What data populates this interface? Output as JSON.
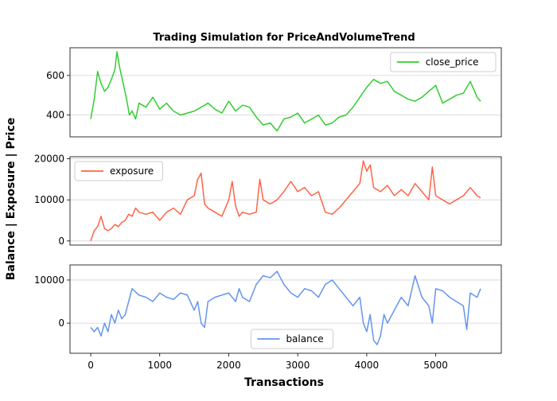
{
  "chart_data": {
    "type": "line",
    "title": "Trading Simulation for PriceAndVolumeTrend",
    "xlabel": "Transactions",
    "ylabel": "Balance | Exposure | Price",
    "xlim": [
      -300,
      5950
    ],
    "xticks": [
      0,
      1000,
      2000,
      3000,
      4000,
      5000
    ],
    "xtick_labels": [
      "0",
      "1000",
      "2000",
      "3000",
      "4000",
      "5000"
    ],
    "grid": "horizontal",
    "panels": [
      {
        "id": "price",
        "ylim": [
          290,
          740
        ],
        "yticks": [
          400,
          600
        ],
        "ytick_labels": [
          "400",
          "600"
        ],
        "legend_position": "top-right",
        "series": [
          {
            "name": "close_price",
            "color": "#32cd32",
            "x": [
              0,
              50,
              100,
              150,
              200,
              250,
              300,
              350,
              380,
              420,
              470,
              520,
              560,
              600,
              650,
              700,
              800,
              900,
              1000,
              1100,
              1200,
              1300,
              1400,
              1500,
              1600,
              1700,
              1800,
              1900,
              2000,
              2100,
              2200,
              2300,
              2400,
              2500,
              2600,
              2700,
              2800,
              2900,
              3000,
              3100,
              3200,
              3300,
              3400,
              3500,
              3600,
              3700,
              3800,
              3900,
              4000,
              4100,
              4200,
              4300,
              4400,
              4500,
              4600,
              4700,
              4800,
              4900,
              5000,
              5100,
              5200,
              5300,
              5400,
              5500,
              5600,
              5650
            ],
            "y": [
              380,
              480,
              620,
              560,
              520,
              540,
              580,
              630,
              720,
              640,
              560,
              480,
              400,
              420,
              380,
              460,
              440,
              490,
              430,
              460,
              420,
              400,
              410,
              420,
              440,
              460,
              430,
              410,
              470,
              420,
              450,
              440,
              390,
              350,
              360,
              320,
              380,
              390,
              410,
              360,
              380,
              400,
              350,
              360,
              390,
              400,
              440,
              490,
              540,
              580,
              560,
              570,
              520,
              500,
              480,
              470,
              490,
              520,
              550,
              460,
              480,
              500,
              510,
              570,
              490,
              470
            ]
          }
        ]
      },
      {
        "id": "exposure",
        "ylim": [
          -1000,
          20500
        ],
        "yticks": [
          0,
          10000,
          20000
        ],
        "ytick_labels": [
          "0",
          "10000",
          "20000"
        ],
        "legend_position": "top-left",
        "series": [
          {
            "name": "exposure",
            "color": "#ff6347",
            "x": [
              0,
              50,
              100,
              150,
              200,
              250,
              300,
              350,
              400,
              450,
              500,
              550,
              600,
              650,
              700,
              800,
              900,
              1000,
              1100,
              1200,
              1300,
              1400,
              1500,
              1550,
              1600,
              1650,
              1700,
              1800,
              1900,
              2000,
              2050,
              2100,
              2150,
              2200,
              2300,
              2400,
              2450,
              2500,
              2600,
              2700,
              2800,
              2900,
              3000,
              3100,
              3200,
              3300,
              3400,
              3500,
              3600,
              3700,
              3800,
              3900,
              3950,
              4000,
              4050,
              4100,
              4200,
              4300,
              4400,
              4500,
              4600,
              4700,
              4800,
              4900,
              4950,
              5000,
              5100,
              5200,
              5300,
              5400,
              5500,
              5600,
              5650
            ],
            "y": [
              0,
              2500,
              3500,
              6000,
              3000,
              2500,
              3000,
              4000,
              3500,
              4500,
              5000,
              6500,
              6000,
              8000,
              7000,
              6500,
              7000,
              5000,
              7000,
              8000,
              6500,
              10000,
              11000,
              15000,
              16500,
              9000,
              8000,
              7000,
              6000,
              10000,
              14500,
              8500,
              6000,
              7000,
              6500,
              7000,
              15000,
              10000,
              9000,
              10000,
              12000,
              14500,
              12000,
              13000,
              11000,
              12000,
              7000,
              6500,
              8000,
              10000,
              12000,
              14000,
              19500,
              17000,
              18500,
              13000,
              12000,
              13500,
              11000,
              12500,
              11000,
              14000,
              12000,
              10000,
              18000,
              11000,
              10000,
              9000,
              10000,
              11000,
              13000,
              11000,
              10500
            ]
          }
        ]
      },
      {
        "id": "balance",
        "ylim": [
          -7000,
          13500
        ],
        "yticks": [
          0,
          10000
        ],
        "ytick_labels": [
          "0",
          "10000"
        ],
        "legend_position": "bottom-center",
        "series": [
          {
            "name": "balance",
            "color": "#6495ed",
            "x": [
              0,
              50,
              100,
              150,
              200,
              250,
              300,
              350,
              400,
              450,
              500,
              550,
              600,
              700,
              800,
              900,
              1000,
              1100,
              1200,
              1300,
              1400,
              1500,
              1550,
              1600,
              1650,
              1700,
              1800,
              1900,
              2000,
              2100,
              2150,
              2200,
              2300,
              2400,
              2500,
              2600,
              2700,
              2800,
              2900,
              3000,
              3100,
              3200,
              3300,
              3400,
              3500,
              3600,
              3700,
              3800,
              3900,
              3950,
              4000,
              4050,
              4100,
              4150,
              4200,
              4250,
              4300,
              4400,
              4500,
              4600,
              4700,
              4800,
              4900,
              4950,
              5000,
              5100,
              5200,
              5300,
              5400,
              5450,
              5500,
              5600,
              5650
            ],
            "y": [
              -1000,
              -2000,
              -1000,
              -3000,
              0,
              -2000,
              2000,
              0,
              3000,
              1000,
              2000,
              5000,
              8000,
              6500,
              6000,
              5000,
              7000,
              6000,
              5500,
              7000,
              6500,
              3000,
              5000,
              0,
              -1000,
              5000,
              6000,
              6500,
              7000,
              5000,
              8000,
              6000,
              5000,
              9000,
              11000,
              10500,
              12000,
              9000,
              7000,
              6000,
              8000,
              7500,
              6000,
              9000,
              10000,
              8000,
              6000,
              4000,
              6000,
              0,
              -2000,
              2000,
              -4000,
              -5000,
              -3000,
              2000,
              0,
              3000,
              6000,
              4000,
              11000,
              6000,
              4000,
              0,
              8000,
              7500,
              6000,
              5000,
              4000,
              -1500,
              7000,
              6000,
              8000
            ]
          }
        ]
      }
    ]
  }
}
